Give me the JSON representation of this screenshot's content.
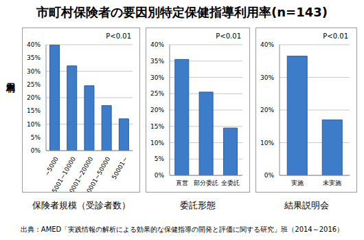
{
  "title": "市町村保険者の要因別特定保健指導利用率(n=143)",
  "ylabel": "利用率",
  "source": "出典：AMED「実践情報の解析による効果的な保健指導の開発と評価に関する研究」班（2014～2016）",
  "chart_data": [
    {
      "type": "bar",
      "xlabel": "保険者規模（受診者数）",
      "annotation": "P<0.01",
      "categories": [
        "~5000",
        "5001~10000",
        "10001~20000",
        "20001~50000",
        "50001~"
      ],
      "values": [
        40,
        32,
        24.5,
        17,
        12
      ],
      "color": "#3d7cc9",
      "ylim": [
        0,
        40
      ],
      "yticks": [
        {
          "value": 0,
          "label": "0%"
        },
        {
          "value": 5,
          "label": "5%"
        },
        {
          "value": 10,
          "label": "10%"
        },
        {
          "value": 15,
          "label": "15%"
        },
        {
          "value": 20,
          "label": "20%"
        },
        {
          "value": 25,
          "label": "25%"
        },
        {
          "value": 30,
          "label": "30%"
        },
        {
          "value": 35,
          "label": "35%"
        },
        {
          "value": 40,
          "label": "40%"
        }
      ],
      "grid": true
    },
    {
      "type": "bar",
      "xlabel": "委託形態",
      "annotation": "P<0.01",
      "categories": [
        "直営",
        "部分委託",
        "全委託"
      ],
      "values": [
        35.5,
        25.5,
        14.5
      ],
      "color": "#3d7cc9",
      "ylim": [
        0,
        40
      ],
      "yticks": [
        {
          "value": 0,
          "label": "0%"
        },
        {
          "value": 5,
          "label": "5%"
        },
        {
          "value": 10,
          "label": "10%"
        },
        {
          "value": 15,
          "label": "15%"
        },
        {
          "value": 20,
          "label": "20%"
        },
        {
          "value": 25,
          "label": "25%"
        },
        {
          "value": 30,
          "label": "30%"
        },
        {
          "value": 35,
          "label": "35%"
        },
        {
          "value": 40,
          "label": "40%"
        }
      ],
      "grid": true
    },
    {
      "type": "bar",
      "xlabel": "結果説明会",
      "annotation": "P<0.01",
      "categories": [
        "実施",
        "未実施"
      ],
      "values": [
        36.5,
        17
      ],
      "color": "#3d7cc9",
      "ylim": [
        0,
        40
      ],
      "yticks": [
        {
          "value": 0,
          "label": "0%"
        },
        {
          "value": 10,
          "label": "10%"
        },
        {
          "value": 20,
          "label": "20%"
        },
        {
          "value": 30,
          "label": "30%"
        },
        {
          "value": 40,
          "label": "40%"
        }
      ],
      "grid": true
    }
  ]
}
